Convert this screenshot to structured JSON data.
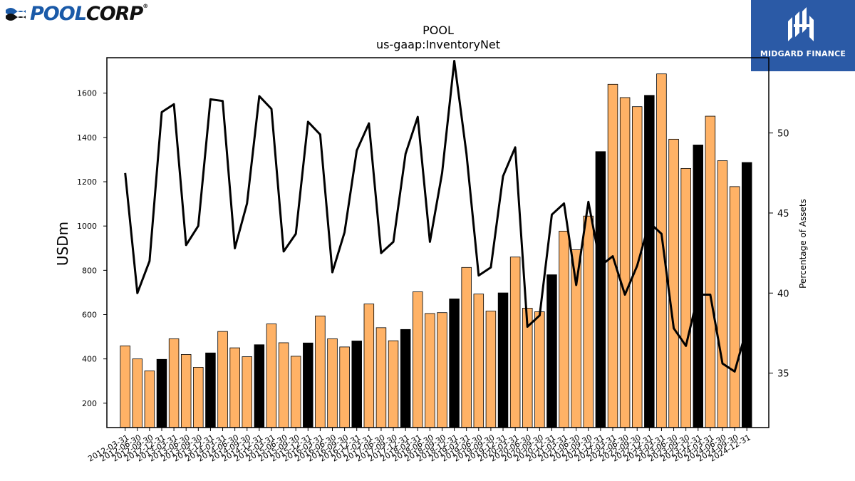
{
  "logos": {
    "left": {
      "pool": "POOL",
      "corp": "CORP",
      "mark": "®"
    },
    "right": {
      "text": "MIDGARD FINANCE"
    }
  },
  "chart_data": {
    "type": "bar",
    "title": "POOL",
    "subtitle": "us-gaap:InventoryNet",
    "ylabel": "USDm",
    "ylabel_right": "Percentage of Assets",
    "ylim": [
      90,
      1760
    ],
    "ylim_right": [
      31.6,
      54.7
    ],
    "yticks": [
      200,
      400,
      600,
      800,
      1000,
      1200,
      1400,
      1600
    ],
    "yticks_right": [
      35,
      40,
      45,
      50
    ],
    "grid": false,
    "colors": {
      "bar": "#ffb266",
      "bar_q4": "#000000",
      "line": "#000000"
    },
    "categories": [
      "2012-03-31",
      "2012-06-30",
      "2012-09-30",
      "2012-12-31",
      "2013-03-31",
      "2013-06-30",
      "2013-09-30",
      "2013-12-31",
      "2014-03-31",
      "2014-06-30",
      "2014-09-30",
      "2014-12-31",
      "2015-03-31",
      "2015-06-30",
      "2015-09-30",
      "2015-12-31",
      "2016-03-31",
      "2016-06-30",
      "2016-09-30",
      "2016-12-31",
      "2017-03-31",
      "2017-06-30",
      "2017-09-30",
      "2017-12-31",
      "2018-03-31",
      "2018-06-30",
      "2018-09-30",
      "2018-12-31",
      "2019-03-31",
      "2019-06-30",
      "2019-09-30",
      "2019-12-31",
      "2020-03-31",
      "2020-06-30",
      "2020-09-30",
      "2020-12-31",
      "2021-03-31",
      "2021-06-30",
      "2021-09-30",
      "2021-12-31",
      "2022-03-31",
      "2022-06-30",
      "2022-09-30",
      "2022-12-31",
      "2023-03-31",
      "2023-06-30",
      "2023-09-30",
      "2023-12-31",
      "2024-03-31",
      "2024-06-30",
      "2024-09-30",
      "2024-12-31"
    ],
    "series": [
      {
        "name": "",
        "axis": "left",
        "kind": "bar",
        "values": [
          459,
          400,
          346,
          398,
          491,
          420,
          362,
          427,
          524,
          450,
          410,
          464,
          558,
          473,
          412,
          472,
          594,
          491,
          454,
          481,
          648,
          541,
          482,
          533,
          703,
          605,
          609,
          671,
          813,
          693,
          616,
          698,
          860,
          629,
          613,
          780,
          977,
          893,
          1045,
          1336,
          1640,
          1580,
          1539,
          1590,
          1687,
          1392,
          1260,
          1366,
          1496,
          1295,
          1178,
          1287
        ]
      },
      {
        "name": "",
        "axis": "right",
        "kind": "line",
        "values": [
          47.5,
          40.0,
          42.0,
          51.3,
          51.8,
          43.0,
          44.2,
          52.1,
          52.0,
          42.8,
          45.6,
          52.3,
          51.5,
          42.6,
          43.7,
          50.7,
          49.9,
          41.3,
          43.8,
          48.9,
          50.6,
          42.5,
          43.2,
          48.7,
          51.0,
          43.2,
          47.5,
          54.5,
          48.7,
          41.1,
          41.6,
          47.3,
          49.1,
          37.9,
          38.6,
          44.9,
          45.6,
          40.5,
          45.7,
          41.7,
          42.3,
          39.9,
          41.7,
          44.4,
          43.7,
          37.8,
          36.7,
          39.9,
          39.9,
          35.6,
          35.1,
          37.8
        ]
      }
    ]
  }
}
